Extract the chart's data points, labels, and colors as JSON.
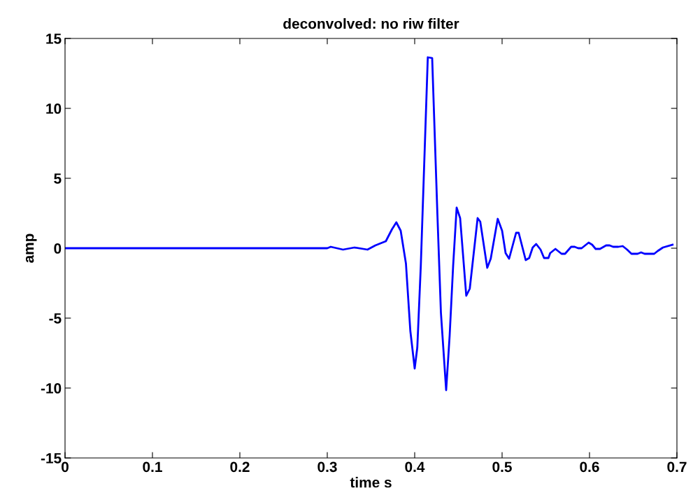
{
  "chart_data": {
    "type": "line",
    "title": "deconvolved: no riw filter",
    "xlabel": "time s",
    "ylabel": "amp",
    "xlim": [
      0,
      0.7
    ],
    "ylim": [
      -15,
      15
    ],
    "xticks": [
      0,
      0.1,
      0.2,
      0.3,
      0.4,
      0.5,
      0.6,
      0.7
    ],
    "yticks": [
      -15,
      -10,
      -5,
      0,
      5,
      10,
      15
    ],
    "grid": false,
    "legend": false,
    "marker": "none",
    "line_style": "solid",
    "series": [
      {
        "color": "#0000ff",
        "x": [
          0,
          0.1,
          0.2,
          0.3,
          0.304,
          0.318,
          0.331,
          0.346,
          0.355,
          0.367,
          0.374,
          0.379,
          0.384,
          0.39,
          0.395,
          0.4,
          0.403,
          0.407,
          0.415,
          0.42,
          0.426,
          0.43,
          0.436,
          0.44,
          0.444,
          0.448,
          0.452,
          0.459,
          0.463,
          0.472,
          0.475,
          0.483,
          0.487,
          0.495,
          0.5,
          0.504,
          0.508,
          0.516,
          0.519,
          0.527,
          0.531,
          0.535,
          0.539,
          0.544,
          0.548,
          0.553,
          0.555,
          0.561,
          0.568,
          0.572,
          0.579,
          0.583,
          0.587,
          0.591,
          0.599,
          0.603,
          0.607,
          0.612,
          0.619,
          0.623,
          0.627,
          0.633,
          0.638,
          0.643,
          0.648,
          0.655,
          0.659,
          0.663,
          0.674,
          0.678,
          0.684,
          0.695
        ],
        "values": [
          0,
          0,
          0,
          0,
          0.1,
          -0.1,
          0.05,
          -0.1,
          0.2,
          0.5,
          1.35,
          1.85,
          1.25,
          -1.1,
          -5.9,
          -8.6,
          -7.1,
          -1.25,
          13.65,
          13.6,
          2.4,
          -4.6,
          -10.15,
          -6.25,
          -1.25,
          2.9,
          2.15,
          -3.4,
          -2.9,
          2.15,
          1.9,
          -1.4,
          -0.75,
          2.1,
          1.25,
          -0.35,
          -0.75,
          1.1,
          1.1,
          -0.85,
          -0.7,
          0.05,
          0.3,
          -0.1,
          -0.7,
          -0.7,
          -0.35,
          -0.05,
          -0.4,
          -0.4,
          0.1,
          0.1,
          0,
          0,
          0.4,
          0.25,
          -0.05,
          -0.05,
          0.2,
          0.2,
          0.1,
          0.1,
          0.15,
          -0.1,
          -0.4,
          -0.4,
          -0.3,
          -0.4,
          -0.4,
          -0.2,
          0.05,
          0.25
        ]
      }
    ]
  }
}
